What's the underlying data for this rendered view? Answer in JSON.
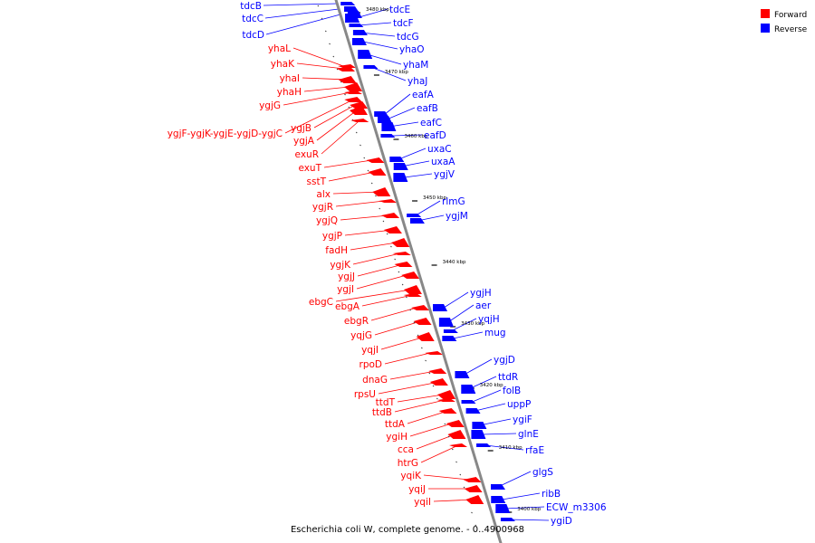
{
  "caption": "Escherichia coli W, complete genome. - 0..4900968",
  "legend": [
    {
      "label": "Forward",
      "color": "#ff0000"
    },
    {
      "label": "Reverse",
      "color": "#0000ff"
    }
  ],
  "colors": {
    "forward": "#ff0000",
    "reverse": "#0000ff",
    "axis": "#888888"
  },
  "scale_labels": [
    "3480 kbp",
    "3470 kbp",
    "3460 kbp",
    "3450 kbp",
    "3440 kbp",
    "3430 kbp",
    "3420 kbp",
    "3410 kbp",
    "3400 kbp"
  ],
  "forward_labels": [
    "yhaL",
    "yhaK",
    "yhaI",
    "yhaH",
    "ygjG",
    "ygjF-ygjK-ygjE-ygjD-ygjC",
    "ygjB",
    "ygjA",
    "exuR",
    "exuT",
    "sstT",
    "alx",
    "ygjR",
    "ygjQ",
    "ygjP",
    "fadH",
    "ygjK",
    "ygjJ",
    "ygjI",
    "ebgC",
    "ebgA",
    "ebgR",
    "yqjG",
    "yqjI",
    "rpoD",
    "dnaG",
    "rpsU",
    "ttdT",
    "ttdB",
    "ttdA",
    "ygiH",
    "cca",
    "htrG",
    "yqiK",
    "yqiJ",
    "yqiI"
  ],
  "reverse_labels": [
    "tdcB",
    "tdcC",
    "tdcD",
    "tdcE",
    "tdcF",
    "tdcG",
    "yhaO",
    "yhaM",
    "yhaJ",
    "eafA",
    "eafB",
    "eafC",
    "eafD",
    "uxaC",
    "uxaA",
    "ygjV",
    "rlmG",
    "ygjM",
    "ygjH",
    "aer",
    "yqjH",
    "mug",
    "ygjD",
    "ttdR",
    "folB",
    "uppP",
    "ygiF",
    "glnE",
    "rfaE",
    "glgS",
    "ribB",
    "ECW_m3306",
    "ygiD"
  ]
}
